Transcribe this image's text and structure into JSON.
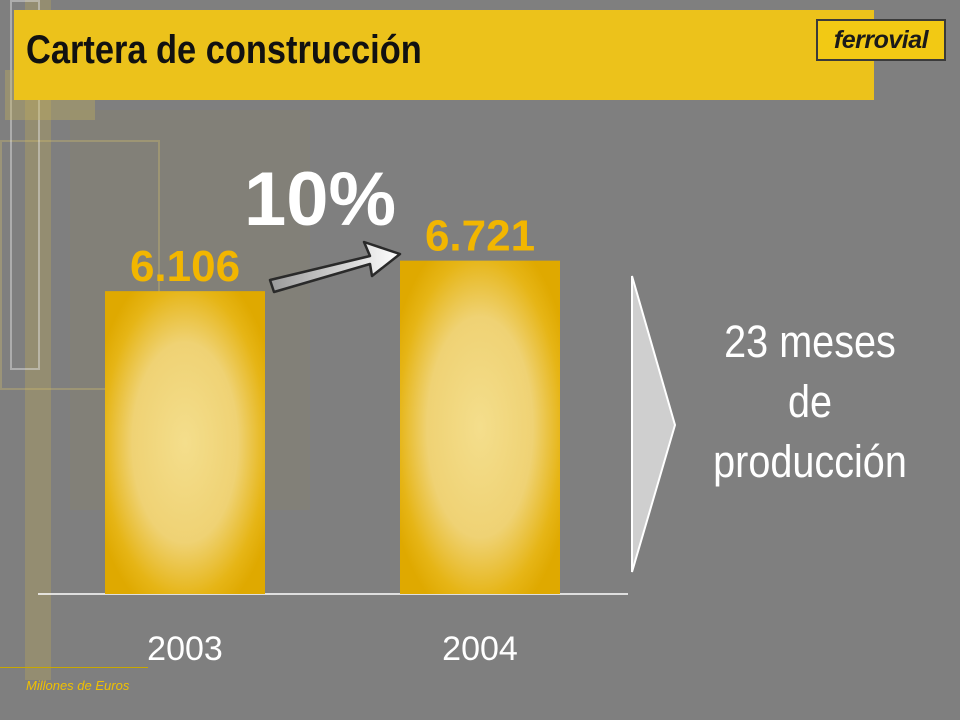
{
  "slide": {
    "title": "Cartera de construcción",
    "logo_text": "ferrovial",
    "growth_label": "10%",
    "side_text": [
      "23 meses",
      "de",
      "producción"
    ],
    "footnote": "Millones de Euros"
  },
  "colors": {
    "background": "#7f7f7f",
    "title_band": "#ecc21b",
    "bar": "#e2ad00",
    "value_label": "#f2b600"
  },
  "chart_data": {
    "type": "bar",
    "categories": [
      "2003",
      "2004"
    ],
    "values": [
      6106,
      6721
    ],
    "value_labels": [
      "6.106",
      "6.721"
    ],
    "title": "",
    "xlabel": "",
    "ylabel": "",
    "ylim": [
      0,
      7500
    ],
    "grid": false,
    "legend": "none"
  }
}
